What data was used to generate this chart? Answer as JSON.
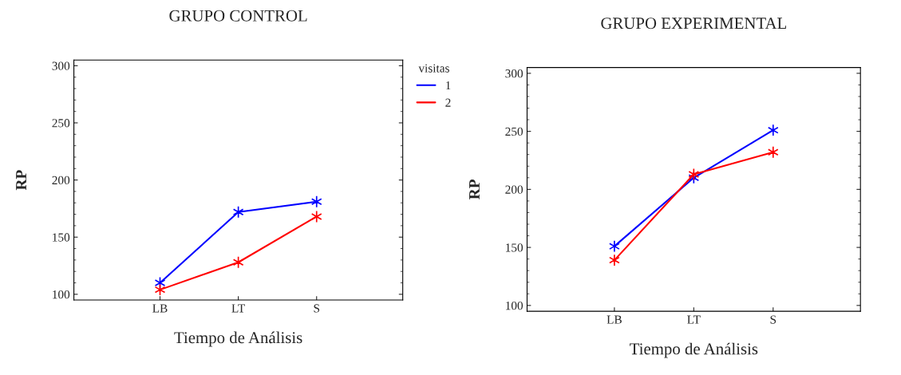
{
  "chart_data": [
    {
      "type": "line",
      "title": "GRUPO CONTROL",
      "xlabel": "Tiempo de Análisis",
      "ylabel": "RP",
      "categories": [
        "LB",
        "LT",
        "S"
      ],
      "ylim": [
        95,
        305
      ],
      "yticks": [
        100,
        150,
        200,
        250,
        300
      ],
      "legend": "top right",
      "legend_title": "visitas",
      "marker": "cross",
      "grid": false,
      "series": [
        {
          "name": "1",
          "color": "#0000ff",
          "values": [
            110,
            172,
            181
          ]
        },
        {
          "name": "2",
          "color": "#ff0000",
          "values": [
            104,
            128,
            168
          ]
        }
      ]
    },
    {
      "type": "line",
      "title": "GRUPO EXPERIMENTAL",
      "xlabel": "Tiempo de Análisis",
      "ylabel": "RP",
      "categories": [
        "LB",
        "LT",
        "S"
      ],
      "ylim": [
        95,
        305
      ],
      "yticks": [
        100,
        150,
        200,
        250,
        300
      ],
      "legend": false,
      "marker": "cross",
      "grid": false,
      "series": [
        {
          "color": "#0000ff",
          "values": [
            151,
            210,
            251
          ]
        },
        {
          "color": "#ff0000",
          "values": [
            139,
            213,
            232
          ]
        }
      ]
    }
  ]
}
